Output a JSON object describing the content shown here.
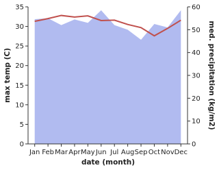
{
  "chart_data": {
    "type": "area-line",
    "x_label": "date (month)",
    "y_label": "max temp (C)",
    "y2_label": "med. precipitation (kg/m2)",
    "categories": [
      "Jan",
      "Feb",
      "Mar",
      "Apr",
      "May",
      "Jun",
      "Jul",
      "Aug",
      "Sep",
      "Oct",
      "Nov",
      "Dec"
    ],
    "series": [
      {
        "name": "med. precipitation",
        "color": "#b1bbf0",
        "axis": "y2",
        "values": [
          54.6,
          55,
          52,
          54.5,
          53,
          58.5,
          52,
          50,
          45.6,
          52.5,
          51,
          58.5
        ]
      },
      {
        "name": "max temp",
        "color": "#c0504d",
        "values": [
          31.3,
          32,
          32.8,
          32.4,
          32.7,
          31.5,
          31.6,
          30.5,
          29.7,
          27.6,
          29.5,
          31.6
        ]
      }
    ],
    "ylim": [
      0,
      35
    ],
    "yticks": [
      0,
      5,
      10,
      15,
      20,
      25,
      30,
      35
    ],
    "y2lim": [
      0,
      60
    ],
    "y2ticks": [
      0,
      10,
      20,
      30,
      40,
      50,
      60
    ]
  }
}
